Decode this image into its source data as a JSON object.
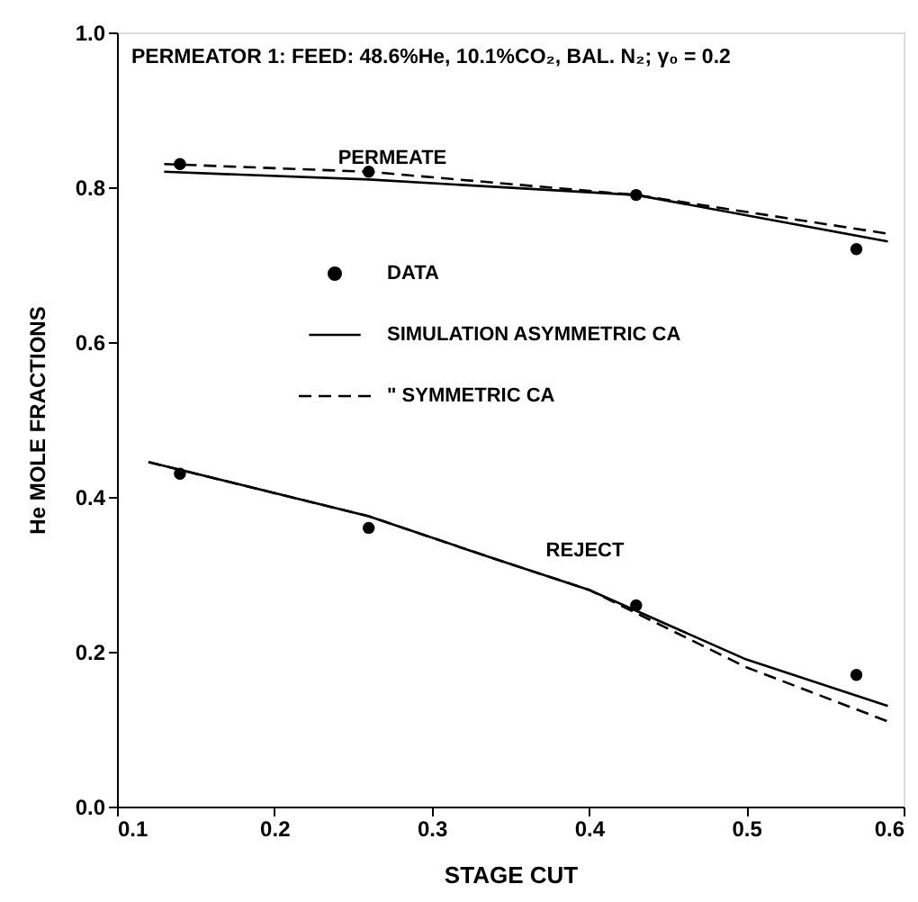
{
  "chart_data": {
    "type": "scatter",
    "title": "PERMEATOR 1: FEED: 48.6%He, 10.1%CO₂, BAL. N₂; γ₀ = 0.2",
    "xlabel": "STAGE CUT",
    "ylabel": "He MOLE FRACTIONS",
    "xlim": [
      0.1,
      0.6
    ],
    "xticks": [
      0.1,
      0.2,
      0.3,
      0.4,
      0.5,
      0.6
    ],
    "ylim": [
      0,
      1
    ],
    "yticks": [
      {
        "value": 0,
        "label": "0.0"
      },
      0.2,
      0.4,
      0.6,
      0.8,
      {
        "value": 1,
        "label": "1.0"
      }
    ],
    "grid": false,
    "legend": "center",
    "series": [
      {
        "name": "DATA",
        "marker": "circle",
        "color": "#000000",
        "x": [
          0.14,
          0.26,
          0.43,
          0.57,
          0.14,
          0.26,
          0.43,
          0.57
        ],
        "values": [
          0.83,
          0.82,
          0.79,
          0.72,
          0.43,
          0.36,
          0.26,
          0.17
        ]
      },
      {
        "name": "SIMULATION  ASYMMETRIC CA",
        "type": "line",
        "line_style": "solid",
        "color": "#000000",
        "x": [
          0.13,
          0.26,
          0.43,
          0.59
        ],
        "values": [
          0.82,
          0.81,
          0.79,
          0.73
        ]
      },
      {
        "type": "line",
        "line_style": "solid",
        "color": "#000000",
        "x": [
          0.12,
          0.26,
          0.34,
          0.4,
          0.5,
          0.59
        ],
        "values": [
          0.445,
          0.375,
          0.32,
          0.28,
          0.19,
          0.13
        ]
      },
      {
        "name": "\"    SYMMETRIC CA",
        "type": "line",
        "line_style": "dashed",
        "color": "#000000",
        "x": [
          0.13,
          0.26,
          0.43,
          0.59
        ],
        "values": [
          0.83,
          0.82,
          0.79,
          0.74
        ]
      },
      {
        "type": "line",
        "line_style": "dashed",
        "color": "#000000",
        "x": [
          0.12,
          0.26,
          0.34,
          0.4,
          0.5,
          0.59
        ],
        "values": [
          0.445,
          0.375,
          0.32,
          0.28,
          0.18,
          0.11
        ]
      }
    ],
    "annotations": [
      "PERMEATE",
      "REJECT"
    ]
  }
}
